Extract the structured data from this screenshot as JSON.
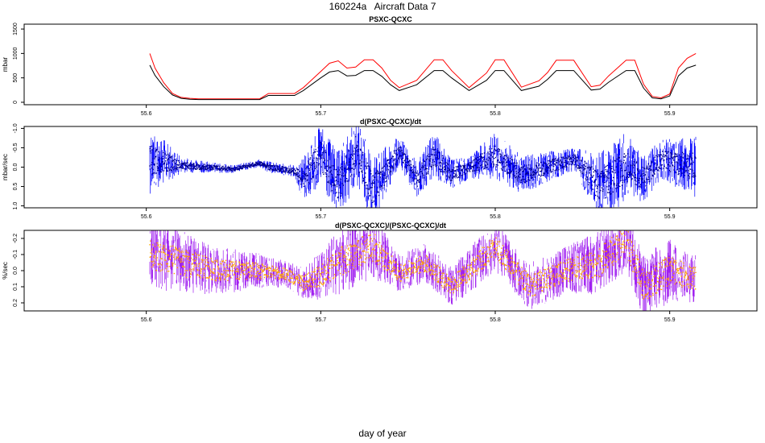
{
  "page": {
    "title": "160224a   Aircraft Data 7",
    "xlabel": "day of year"
  },
  "colors": {
    "panel1_series1": "#ff0000",
    "panel1_series2": "#000000",
    "panel2_series": "#0000ff",
    "panel2_points": "#00008b",
    "panel3_series": "#a020f0",
    "panel3_points": "#ffa500"
  },
  "chart_data": [
    {
      "type": "line",
      "title": "PSXC-QCXC",
      "xlabel": "",
      "ylabel": "mbar",
      "xlim": [
        55.53,
        55.95
      ],
      "ylim": [
        -50,
        1600
      ],
      "xticks": [
        "55.6",
        "55.7",
        "55.8",
        "55.9"
      ],
      "xtick_values": [
        55.6,
        55.7,
        55.8,
        55.9
      ],
      "yticks": [
        "0",
        "500",
        "1000",
        "1500"
      ],
      "ytick_values": [
        0,
        500,
        1000,
        1500
      ],
      "grid": false,
      "series": [
        {
          "color": "red",
          "x": [
            55.602,
            55.605,
            55.61,
            55.615,
            55.62,
            55.625,
            55.63,
            55.64,
            55.65,
            55.66,
            55.665,
            55.67,
            55.685,
            55.69,
            55.7,
            55.705,
            55.71,
            55.715,
            55.72,
            55.725,
            55.73,
            55.735,
            55.74,
            55.745,
            55.755,
            55.765,
            55.77,
            55.775,
            55.785,
            55.795,
            55.8,
            55.805,
            55.815,
            55.825,
            55.83,
            55.835,
            55.845,
            55.855,
            55.86,
            55.865,
            55.875,
            55.88,
            55.885,
            55.89,
            55.895,
            55.9,
            55.905,
            55.91,
            55.915
          ],
          "values": [
            1000,
            700,
            400,
            180,
            100,
            80,
            70,
            70,
            70,
            70,
            70,
            180,
            180,
            300,
            630,
            800,
            850,
            700,
            720,
            870,
            870,
            700,
            450,
            300,
            450,
            870,
            870,
            650,
            300,
            600,
            870,
            870,
            310,
            440,
            610,
            860,
            860,
            320,
            350,
            540,
            860,
            860,
            370,
            120,
            90,
            170,
            700,
            900,
            1000
          ]
        },
        {
          "color": "black",
          "x": [
            55.602,
            55.605,
            55.61,
            55.615,
            55.62,
            55.625,
            55.63,
            55.64,
            55.65,
            55.66,
            55.665,
            55.67,
            55.685,
            55.69,
            55.7,
            55.705,
            55.71,
            55.715,
            55.72,
            55.725,
            55.73,
            55.735,
            55.74,
            55.745,
            55.755,
            55.765,
            55.77,
            55.775,
            55.785,
            55.795,
            55.8,
            55.805,
            55.815,
            55.825,
            55.83,
            55.835,
            55.845,
            55.855,
            55.86,
            55.865,
            55.875,
            55.88,
            55.885,
            55.89,
            55.895,
            55.9,
            55.905,
            55.91,
            55.915
          ],
          "values": [
            760,
            550,
            320,
            150,
            80,
            60,
            55,
            55,
            55,
            55,
            55,
            140,
            140,
            240,
            500,
            620,
            650,
            540,
            550,
            650,
            650,
            530,
            360,
            240,
            360,
            650,
            650,
            500,
            240,
            450,
            650,
            650,
            240,
            330,
            470,
            650,
            650,
            250,
            270,
            410,
            650,
            650,
            290,
            90,
            70,
            130,
            540,
            700,
            760
          ]
        }
      ]
    },
    {
      "type": "scatter",
      "title": "d(PSXC-QCXC)/dt",
      "xlabel": "",
      "ylabel": "mbar/sec",
      "xlim": [
        55.53,
        55.95
      ],
      "ylim": [
        1.05,
        -1.05
      ],
      "xticks": [
        "55.6",
        "55.7",
        "55.8",
        "55.9"
      ],
      "xtick_values": [
        55.6,
        55.7,
        55.8,
        55.9
      ],
      "yticks": [
        "-1.0",
        "-0.5",
        "0.0",
        "0.5",
        "1.0"
      ],
      "ytick_values": [
        -1.0,
        -0.5,
        0.0,
        0.5,
        1.0
      ],
      "grid": false,
      "series": [
        {
          "color": "blue/darkblue",
          "x_range": [
            55.602,
            55.915
          ],
          "center_x": [
            55.602,
            55.62,
            55.65,
            55.665,
            55.67,
            55.685,
            55.69,
            55.7,
            55.71,
            55.72,
            55.73,
            55.745,
            55.755,
            55.765,
            55.775,
            55.785,
            55.8,
            55.815,
            55.83,
            55.845,
            55.86,
            55.875,
            55.885,
            55.895,
            55.915
          ],
          "center": [
            -0.2,
            -0.05,
            0.05,
            -0.1,
            0.0,
            0.1,
            0.3,
            -0.3,
            0.5,
            -0.4,
            0.6,
            -0.4,
            0.3,
            -0.3,
            0.2,
            0.0,
            -0.3,
            0.2,
            0.0,
            -0.2,
            0.5,
            0.0,
            0.3,
            -0.2,
            0.0
          ],
          "spread": [
            0.9,
            0.2,
            0.1,
            0.1,
            0.15,
            0.15,
            0.6,
            0.8,
            0.9,
            0.9,
            0.9,
            0.4,
            0.5,
            0.6,
            0.4,
            0.3,
            0.6,
            0.5,
            0.4,
            0.3,
            0.9,
            0.9,
            0.6,
            0.5,
            0.8
          ]
        }
      ]
    },
    {
      "type": "scatter",
      "title": "d(PSXC-QCXC)/(PSXC-QCXC)/dt",
      "xlabel": "",
      "ylabel": "%/sec",
      "xlim": [
        55.53,
        55.95
      ],
      "ylim": [
        0.25,
        -0.25
      ],
      "xticks": [
        "55.6",
        "55.7",
        "55.8",
        "55.9"
      ],
      "xtick_values": [
        55.6,
        55.7,
        55.8,
        55.9
      ],
      "yticks": [
        "-0.2",
        "-0.1",
        "0.0",
        "0.1",
        "0.2"
      ],
      "ytick_values": [
        -0.2,
        -0.1,
        0.0,
        0.1,
        0.2
      ],
      "grid": false,
      "series": [
        {
          "color": "purple/orange",
          "x_range": [
            55.602,
            55.915
          ],
          "center_x": [
            55.602,
            55.62,
            55.64,
            55.66,
            55.68,
            55.69,
            55.7,
            55.71,
            55.72,
            55.73,
            55.745,
            55.76,
            55.775,
            55.79,
            55.8,
            55.82,
            55.84,
            55.86,
            55.875,
            55.885,
            55.9,
            55.915
          ],
          "center": [
            -0.1,
            -0.05,
            0.0,
            0.0,
            0.02,
            0.08,
            0.03,
            -0.05,
            -0.1,
            -0.15,
            0.02,
            -0.05,
            0.1,
            -0.05,
            -0.15,
            0.1,
            0.0,
            -0.05,
            -0.2,
            0.1,
            0.0,
            0.05
          ],
          "spread": [
            0.2,
            0.2,
            0.15,
            0.12,
            0.08,
            0.1,
            0.15,
            0.2,
            0.2,
            0.2,
            0.12,
            0.12,
            0.12,
            0.15,
            0.15,
            0.15,
            0.15,
            0.2,
            0.2,
            0.2,
            0.2,
            0.15
          ]
        }
      ]
    }
  ]
}
